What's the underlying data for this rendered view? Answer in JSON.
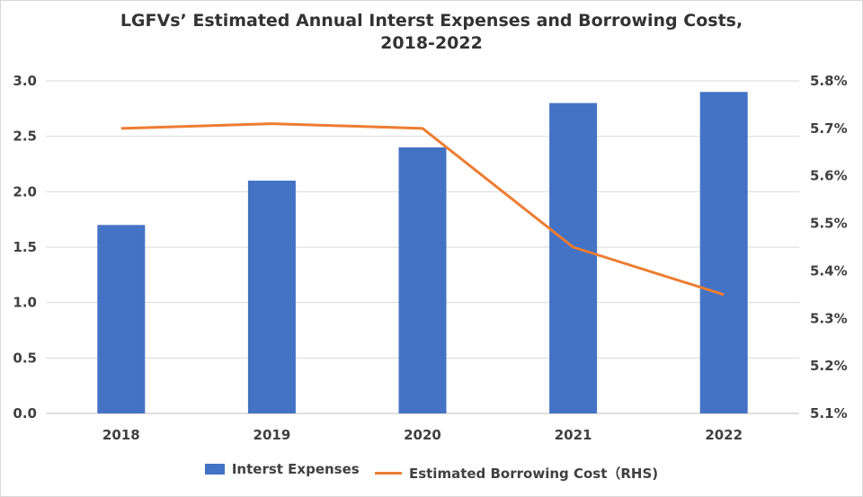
{
  "chart_data": {
    "type": "bar",
    "title_line1": "LGFVs’ Estimated Annual Interst Expenses and Borrowing Costs,",
    "title_line2": "2018-2022",
    "categories": [
      "2018",
      "2019",
      "2020",
      "2021",
      "2022"
    ],
    "series": [
      {
        "name": "Interst Expenses",
        "type": "bar",
        "axis": "left",
        "color": "#4472C4",
        "values": [
          1.7,
          2.1,
          2.4,
          2.8,
          2.9
        ]
      },
      {
        "name": "Estimated Borrowing Cost（RHS)",
        "type": "line",
        "axis": "right",
        "color": "#ED7D31",
        "values": [
          5.7,
          5.71,
          5.7,
          5.45,
          5.35
        ]
      }
    ],
    "y_left": {
      "min": 0,
      "max": 3.0,
      "ticks": [
        "0.0",
        "0.5",
        "1.0",
        "1.5",
        "2.0",
        "2.5",
        "3.0"
      ]
    },
    "y_right": {
      "min": 5.1,
      "max": 5.8,
      "ticks": [
        "5.1%",
        "5.2%",
        "5.3%",
        "5.4%",
        "5.5%",
        "5.6%",
        "5.7%",
        "5.8%"
      ]
    },
    "grid": true,
    "legend_position": "bottom"
  }
}
